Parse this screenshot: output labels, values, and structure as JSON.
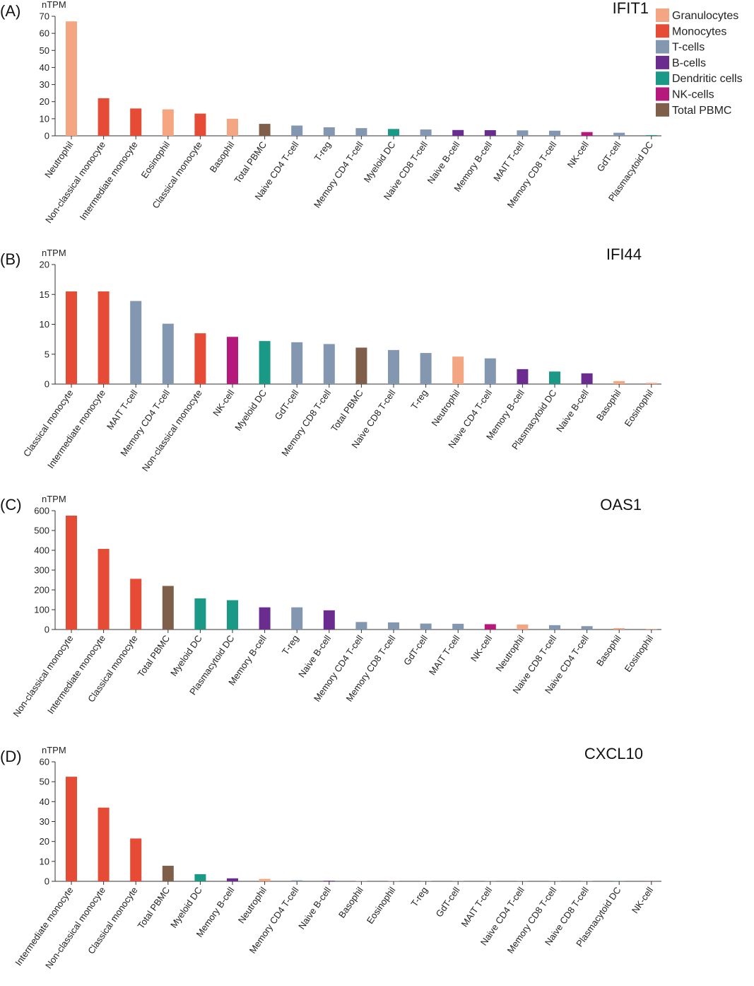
{
  "legend": [
    {
      "name": "Granulocytes",
      "color": "#F4A582"
    },
    {
      "name": "Monocytes",
      "color": "#E64B35"
    },
    {
      "name": "T-cells",
      "color": "#8497B0"
    },
    {
      "name": "B-cells",
      "color": "#6A2C8E"
    },
    {
      "name": "Dendritic cells",
      "color": "#1A9A86"
    },
    {
      "name": "NK-cells",
      "color": "#B5197C"
    },
    {
      "name": "Total PBMC",
      "color": "#7F5F4A"
    }
  ],
  "chart_data": [
    {
      "type": "bar",
      "panel": "(A)",
      "title": "IFIT1",
      "ylabel": "nTPM",
      "ylim": [
        0,
        70
      ],
      "yticks": [
        0,
        10,
        20,
        30,
        40,
        50,
        60,
        70
      ],
      "categories": [
        "Neutrophil",
        "Non-classical monocyte",
        "Intermediate monocyte",
        "Eosinophil",
        "Classical monocyte",
        "Basophil",
        "Total PBMC",
        "Naive CD4 T-cell",
        "T-reg",
        "Memory CD4 T-cell",
        "Myeloid DC",
        "Naive CD8 T-cell",
        "Naive B-cell",
        "Memory B-cell",
        "MAIT T-cell",
        "Memory CD8 T-cell",
        "NK-cell",
        "GdT-cell",
        "Plasmacytoid DC"
      ],
      "groups": [
        "Granulocytes",
        "Monocytes",
        "Monocytes",
        "Granulocytes",
        "Monocytes",
        "Granulocytes",
        "Total PBMC",
        "T-cells",
        "T-cells",
        "T-cells",
        "Dendritic cells",
        "T-cells",
        "B-cells",
        "B-cells",
        "T-cells",
        "T-cells",
        "NK-cells",
        "T-cells",
        "Dendritic cells"
      ],
      "values": [
        67,
        22,
        16,
        15.5,
        13,
        10,
        7,
        6,
        5,
        4.5,
        4,
        3.7,
        3.4,
        3.3,
        3.2,
        3,
        2.2,
        1.8,
        0.4
      ]
    },
    {
      "type": "bar",
      "panel": "(B)",
      "title": "IFI44",
      "ylabel": "nTPM",
      "ylim": [
        0,
        20
      ],
      "yticks": [
        0,
        5,
        10,
        15,
        20
      ],
      "categories": [
        "Classical monocyte",
        "Intermediate monocyte",
        "MAIT T-cell",
        "Memory CD4 T-cell",
        "Non-classical monocyte",
        "NK-cell",
        "Myeloid DC",
        "GdT-cell",
        "Memory CD8 T-cell",
        "Total PBMC",
        "Naive CD8 T-cell",
        "T-reg",
        "Neutrophil",
        "Naive CD4 T-cell",
        "Memory B-cell",
        "Plasmacytoid DC",
        "Naive B-cell",
        "Basophil",
        "Eosinophil"
      ],
      "groups": [
        "Monocytes",
        "Monocytes",
        "T-cells",
        "T-cells",
        "Monocytes",
        "NK-cells",
        "Dendritic cells",
        "T-cells",
        "T-cells",
        "Total PBMC",
        "T-cells",
        "T-cells",
        "Granulocytes",
        "T-cells",
        "B-cells",
        "Dendritic cells",
        "B-cells",
        "Granulocytes",
        "Granulocytes"
      ],
      "values": [
        15.5,
        15.5,
        13.9,
        10.1,
        8.5,
        7.9,
        7.2,
        7.0,
        6.7,
        6.1,
        5.7,
        5.2,
        4.6,
        4.3,
        2.5,
        2.1,
        1.8,
        0.5,
        0.2
      ]
    },
    {
      "type": "bar",
      "panel": "(C)",
      "title": "OAS1",
      "ylabel": "nTPM",
      "ylim": [
        0,
        600
      ],
      "yticks": [
        0,
        100,
        200,
        300,
        400,
        500,
        600
      ],
      "categories": [
        "Non-classical monocyte",
        "Intermediate monocyte",
        "Classical monocyte",
        "Total PBMC",
        "Myeloid DC",
        "Plasmacytoid DC",
        "Memory B-cell",
        "T-reg",
        "Naive B-cell",
        "Memory CD4 T-cell",
        "Memory CD8 T-cell",
        "GdT-cell",
        "MAIT T-cell",
        "NK-cell",
        "Neutrophil",
        "Naive CD8 T-cell",
        "Naive CD4 T-cell",
        "Basophil",
        "Eosinophil"
      ],
      "groups": [
        "Monocytes",
        "Monocytes",
        "Monocytes",
        "Total PBMC",
        "Dendritic cells",
        "Dendritic cells",
        "B-cells",
        "T-cells",
        "B-cells",
        "T-cells",
        "T-cells",
        "T-cells",
        "T-cells",
        "NK-cells",
        "Granulocytes",
        "T-cells",
        "T-cells",
        "Granulocytes",
        "Granulocytes"
      ],
      "values": [
        575,
        407,
        256,
        220,
        157,
        148,
        112,
        112,
        97,
        38,
        36,
        30,
        29,
        27,
        25,
        22,
        17,
        7,
        3
      ]
    },
    {
      "type": "bar",
      "panel": "(D)",
      "title": "CXCL10",
      "ylabel": "nTPM",
      "ylim": [
        0,
        60
      ],
      "yticks": [
        0,
        10,
        20,
        30,
        40,
        50,
        60
      ],
      "categories": [
        "Intermediate monocyte",
        "Non-classical monocyte",
        "Classical monocyte",
        "Total PBMC",
        "Myeloid DC",
        "Memory B-cell",
        "Neutrophil",
        "Memory CD4 T-cell",
        "Naive B-cell",
        "Basophil",
        "Eosinophil",
        "T-reg",
        "GdT-cell",
        "MAIT T-cell",
        "Naive CD4 T-cell",
        "Memory CD8 T-cell",
        "Naive CD8 T-cell",
        "Plasmacytoid DC",
        "NK-cell"
      ],
      "groups": [
        "Monocytes",
        "Monocytes",
        "Monocytes",
        "Total PBMC",
        "Dendritic cells",
        "B-cells",
        "Granulocytes",
        "T-cells",
        "B-cells",
        "Granulocytes",
        "Granulocytes",
        "T-cells",
        "T-cells",
        "T-cells",
        "T-cells",
        "T-cells",
        "T-cells",
        "Dendritic cells",
        "NK-cells"
      ],
      "values": [
        52.5,
        37,
        21.5,
        7.8,
        3.6,
        1.5,
        1.2,
        0.5,
        0.3,
        0.1,
        0.1,
        0.1,
        0.1,
        0.1,
        0.1,
        0.1,
        0.1,
        0.1,
        0.1
      ]
    }
  ]
}
